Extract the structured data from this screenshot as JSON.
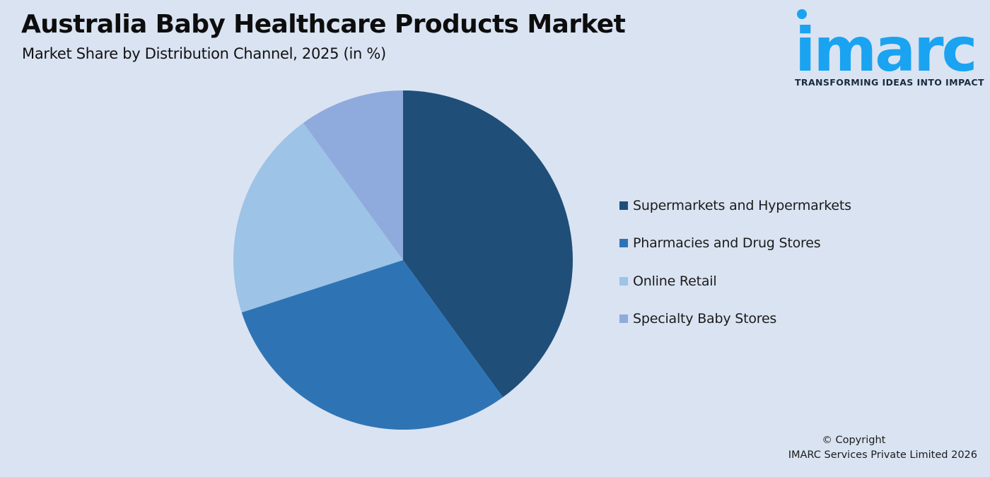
{
  "header": {
    "title": "Australia Baby Healthcare Products Market",
    "subtitle": "Market Share by Distribution Channel, 2025 (in %)"
  },
  "logo": {
    "wordmark": "imarc",
    "tagline": "TRANSFORMING IDEAS INTO IMPACT",
    "color": "#1aa3f0"
  },
  "chart_data": {
    "type": "pie",
    "title": "Market Share by Distribution Channel, 2025 (in %)",
    "categories": [
      "Supermarkets and Hypermarkets",
      "Pharmacies and Drug Stores",
      "Online Retail",
      "Specialty Baby Stores"
    ],
    "values": [
      40,
      30,
      20,
      10
    ],
    "colors": [
      "#1f4e79",
      "#2e74b5",
      "#9dc3e6",
      "#8faadc"
    ],
    "start_angle": "12 o'clock",
    "direction": "clockwise",
    "legend_position": "right"
  },
  "footer": {
    "copyright_line1": "© Copyright",
    "copyright_line2": "IMARC Services Private Limited 2026"
  }
}
